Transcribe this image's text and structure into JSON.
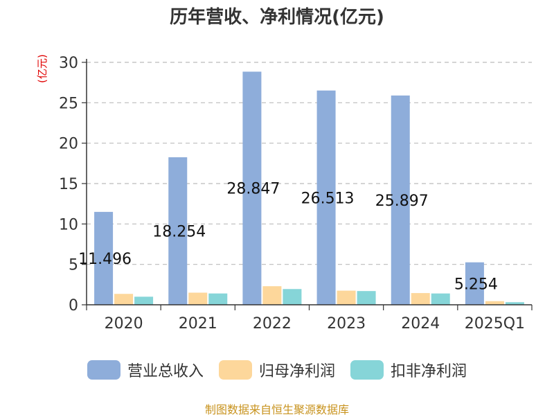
{
  "title": "历年营收、净利情况(亿元)",
  "unit_label": "(亿元)",
  "source": "制图数据来自恒生聚源数据库",
  "chart_data": {
    "type": "bar",
    "categories": [
      "2020",
      "2021",
      "2022",
      "2023",
      "2024",
      "2025Q1"
    ],
    "ylim": [
      0,
      30
    ],
    "yticks": [
      0,
      5,
      10,
      15,
      20,
      25,
      30
    ],
    "grid": true,
    "legend_position": "bottom",
    "series": [
      {
        "name": "营业总收入",
        "color": "#8eadda",
        "values": [
          11.496,
          18.254,
          28.847,
          26.513,
          25.897,
          5.254
        ],
        "labels": [
          "11.496",
          "18.254",
          "28.847",
          "26.513",
          "25.897",
          "5.254"
        ]
      },
      {
        "name": "归母净利润",
        "color": "#fdd79b",
        "values": [
          1.35,
          1.5,
          2.3,
          1.75,
          1.45,
          0.45
        ]
      },
      {
        "name": "扣非净利润",
        "color": "#86d5d8",
        "values": [
          1.0,
          1.4,
          1.95,
          1.7,
          1.4,
          0.32
        ]
      }
    ]
  }
}
